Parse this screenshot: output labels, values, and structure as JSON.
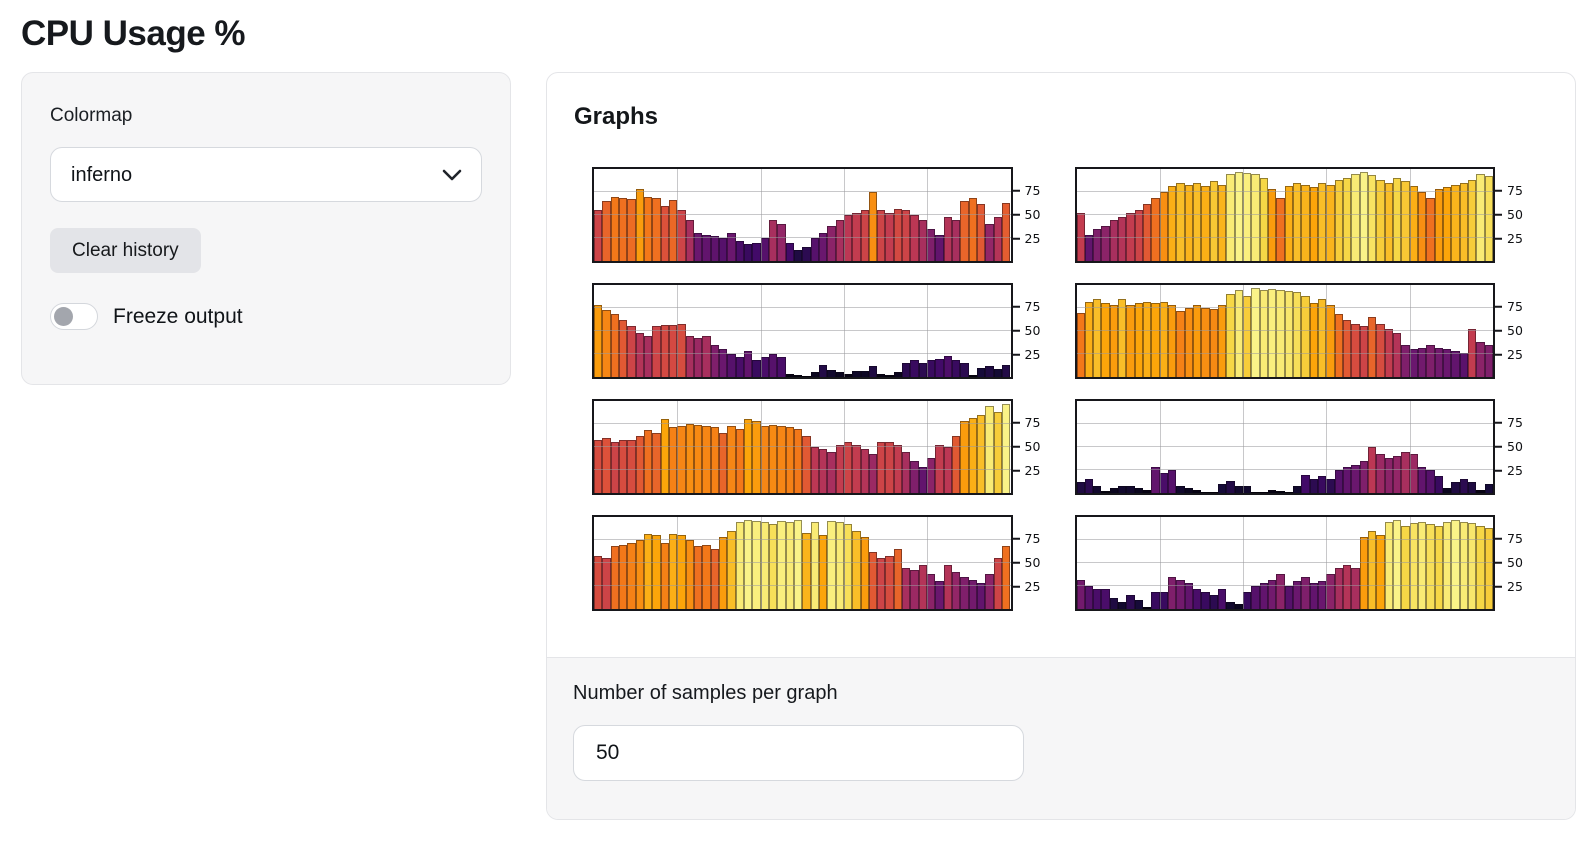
{
  "page": {
    "title": "CPU Usage %"
  },
  "controls": {
    "colormap_label": "Colormap",
    "colormap_value": "inferno",
    "clear_button": "Clear history",
    "freeze_label": "Freeze output",
    "freeze_on": false
  },
  "graphs_panel": {
    "heading": "Graphs",
    "samples_label": "Number of samples per graph",
    "samples_value": "50"
  },
  "icons": {
    "select_chevron": "chevron-down"
  },
  "colors": {
    "card_bg": "#f6f6f7",
    "card_border": "#e4e5e8",
    "button_bg": "#e3e4e8",
    "input_border": "#d6d9de",
    "plot_frame": "#17171b",
    "gridline": "#9b9b9e",
    "toggle_knob": "#a3a6ad",
    "inferno_stops": [
      "#000004",
      "#160b39",
      "#420a68",
      "#6a176e",
      "#932667",
      "#bc3754",
      "#dd513a",
      "#f37819",
      "#fca50a",
      "#f6d746",
      "#fcffa4"
    ]
  },
  "chart_data": [
    {
      "type": "bar",
      "name": "cpu-graph-1",
      "ylim": [
        0,
        100
      ],
      "yticks": [
        25,
        50,
        75
      ],
      "grid": true,
      "colormap": "inferno",
      "values": [
        55,
        65,
        70,
        68,
        67,
        78,
        70,
        68,
        60,
        66,
        55,
        45,
        30,
        28,
        27,
        25,
        30,
        22,
        18,
        20,
        25,
        45,
        40,
        20,
        12,
        15,
        25,
        30,
        38,
        45,
        50,
        52,
        55,
        75,
        55,
        52,
        57,
        55,
        50,
        45,
        35,
        28,
        48,
        45,
        65,
        68,
        62,
        40,
        48,
        63
      ]
    },
    {
      "type": "bar",
      "name": "cpu-graph-2",
      "ylim": [
        0,
        100
      ],
      "yticks": [
        25,
        50,
        75
      ],
      "grid": true,
      "colormap": "inferno",
      "values": [
        52,
        28,
        35,
        38,
        45,
        48,
        52,
        55,
        62,
        68,
        75,
        82,
        85,
        83,
        85,
        82,
        87,
        83,
        95,
        97,
        96,
        95,
        90,
        78,
        68,
        82,
        85,
        83,
        80,
        85,
        83,
        88,
        90,
        95,
        97,
        93,
        88,
        85,
        90,
        87,
        82,
        75,
        68,
        78,
        80,
        83,
        85,
        88,
        95,
        92
      ]
    },
    {
      "type": "bar",
      "name": "cpu-graph-3",
      "ylim": [
        0,
        100
      ],
      "yticks": [
        25,
        50,
        75
      ],
      "grid": true,
      "colormap": "inferno",
      "values": [
        78,
        73,
        68,
        62,
        55,
        48,
        45,
        55,
        57,
        57,
        58,
        45,
        42,
        45,
        35,
        30,
        25,
        22,
        28,
        18,
        22,
        25,
        22,
        3,
        2,
        1,
        5,
        13,
        8,
        5,
        3,
        7,
        6,
        12,
        3,
        2,
        5,
        15,
        18,
        15,
        18,
        20,
        23,
        18,
        15,
        2,
        10,
        12,
        9,
        13
      ]
    },
    {
      "type": "bar",
      "name": "cpu-graph-4",
      "ylim": [
        0,
        100
      ],
      "yticks": [
        25,
        50,
        75
      ],
      "grid": true,
      "colormap": "inferno",
      "values": [
        70,
        82,
        85,
        80,
        78,
        85,
        78,
        80,
        82,
        80,
        82,
        78,
        72,
        75,
        78,
        75,
        74,
        78,
        90,
        95,
        88,
        97,
        95,
        96,
        95,
        94,
        92,
        88,
        80,
        85,
        78,
        68,
        62,
        58,
        55,
        65,
        58,
        52,
        48,
        35,
        30,
        32,
        35,
        32,
        30,
        28,
        26,
        52,
        38,
        35
      ]
    },
    {
      "type": "bar",
      "name": "cpu-graph-5",
      "ylim": [
        0,
        100
      ],
      "yticks": [
        25,
        50,
        75
      ],
      "grid": true,
      "colormap": "inferno",
      "values": [
        58,
        60,
        55,
        58,
        58,
        62,
        68,
        65,
        80,
        72,
        73,
        75,
        74,
        73,
        72,
        65,
        73,
        70,
        80,
        78,
        73,
        74,
        73,
        72,
        70,
        62,
        50,
        48,
        45,
        52,
        55,
        52,
        48,
        42,
        55,
        55,
        52,
        45,
        35,
        28,
        38,
        52,
        50,
        62,
        78,
        82,
        85,
        95,
        88,
        97
      ]
    },
    {
      "type": "bar",
      "name": "cpu-graph-6",
      "ylim": [
        0,
        100
      ],
      "yticks": [
        25,
        50,
        75
      ],
      "grid": true,
      "colormap": "inferno",
      "values": [
        12,
        15,
        8,
        2,
        5,
        8,
        8,
        5,
        3,
        28,
        22,
        25,
        8,
        5,
        3,
        1,
        1,
        10,
        13,
        8,
        8,
        1,
        1,
        3,
        2,
        1,
        8,
        20,
        15,
        18,
        15,
        25,
        28,
        30,
        35,
        50,
        42,
        38,
        40,
        45,
        42,
        28,
        25,
        18,
        5,
        12,
        15,
        12,
        3,
        10
      ]
    },
    {
      "type": "bar",
      "name": "cpu-graph-7",
      "ylim": [
        0,
        100
      ],
      "yticks": [
        25,
        50,
        75
      ],
      "grid": true,
      "colormap": "inferno",
      "values": [
        58,
        55,
        68,
        70,
        72,
        75,
        82,
        80,
        72,
        82,
        80,
        75,
        68,
        70,
        65,
        78,
        85,
        95,
        97,
        96,
        95,
        92,
        96,
        95,
        97,
        83,
        95,
        80,
        96,
        95,
        92,
        85,
        78,
        62,
        55,
        58,
        65,
        45,
        42,
        48,
        38,
        30,
        48,
        40,
        35,
        32,
        28,
        38,
        55,
        68
      ]
    },
    {
      "type": "bar",
      "name": "cpu-graph-8",
      "ylim": [
        0,
        100
      ],
      "yticks": [
        25,
        50,
        75
      ],
      "grid": true,
      "colormap": "inferno",
      "values": [
        32,
        25,
        22,
        22,
        12,
        8,
        15,
        10,
        2,
        18,
        18,
        35,
        32,
        28,
        22,
        18,
        15,
        22,
        8,
        5,
        18,
        25,
        28,
        32,
        38,
        25,
        30,
        35,
        28,
        30,
        38,
        45,
        48,
        45,
        78,
        85,
        80,
        95,
        97,
        90,
        93,
        95,
        92,
        90,
        95,
        97,
        95,
        94,
        90,
        88
      ]
    }
  ]
}
